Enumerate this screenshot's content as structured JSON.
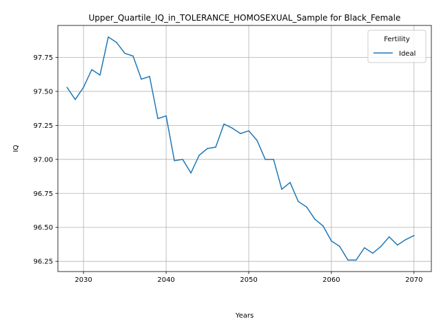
{
  "chart_data": {
    "type": "line",
    "title": "Upper_Quartile_IQ_in_TOLERANCE_HOMOSEXUAL_Sample for Black_Female",
    "xlabel": "Years",
    "ylabel": "IQ",
    "xlim": [
      2026.9,
      2072.1
    ],
    "ylim": [
      96.175,
      97.985
    ],
    "xticks": [
      2030,
      2040,
      2050,
      2060,
      2070
    ],
    "yticks": [
      96.25,
      96.5,
      96.75,
      97.0,
      97.25,
      97.5,
      97.75
    ],
    "ytick_labels": [
      "96.25",
      "96.50",
      "96.75",
      "97.00",
      "97.25",
      "97.50",
      "97.75"
    ],
    "grid": true,
    "legend": {
      "title": "Fertility",
      "placement": "top-right"
    },
    "series": [
      {
        "name": "Ideal",
        "color": "#1f77b4",
        "x": [
          2028,
          2029,
          2030,
          2031,
          2032,
          2033,
          2034,
          2035,
          2036,
          2037,
          2038,
          2039,
          2040,
          2041,
          2042,
          2043,
          2044,
          2045,
          2046,
          2047,
          2048,
          2049,
          2050,
          2051,
          2052,
          2053,
          2054,
          2055,
          2056,
          2057,
          2058,
          2059,
          2060,
          2061,
          2062,
          2063,
          2064,
          2065,
          2066,
          2067,
          2068,
          2069,
          2070
        ],
        "y": [
          97.53,
          97.44,
          97.53,
          97.66,
          97.62,
          97.9,
          97.86,
          97.78,
          97.76,
          97.59,
          97.61,
          97.3,
          97.32,
          96.99,
          97.0,
          96.9,
          97.03,
          97.08,
          97.09,
          97.26,
          97.23,
          97.19,
          97.21,
          97.14,
          97.0,
          97.0,
          96.78,
          96.83,
          96.69,
          96.65,
          96.56,
          96.51,
          96.4,
          96.36,
          96.26,
          96.26,
          96.35,
          96.31,
          96.36,
          96.43,
          96.37,
          96.41,
          96.44
        ]
      }
    ]
  }
}
